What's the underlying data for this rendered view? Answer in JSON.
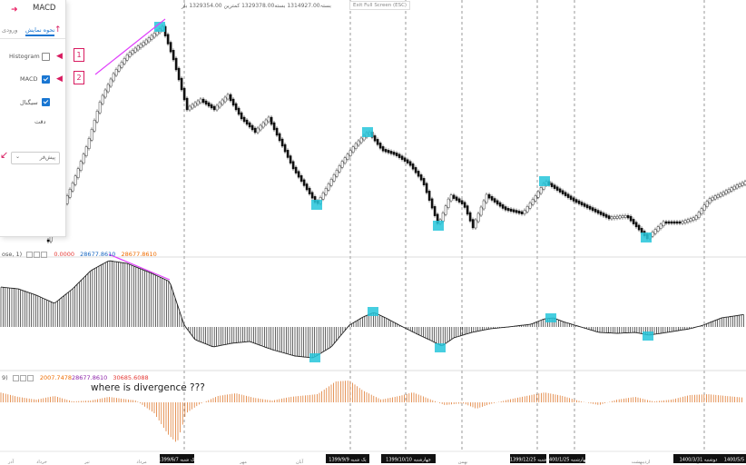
{
  "ohlc_bar": "بستہ1314927.00 بسته1329378.00 کمترین 1329354.00 باز",
  "fullscreen_label": "Exit Full Screen (ESC)",
  "panel": {
    "title": "MACD",
    "tabs": [
      "نحوه نمایش",
      "ورودی"
    ],
    "rows": [
      {
        "label": "Histogram",
        "checked": false,
        "badge": "1"
      },
      {
        "label": "MACD",
        "checked": true,
        "badge": "2"
      },
      {
        "label": "سیگنال",
        "checked": true,
        "badge": ""
      }
    ],
    "precision_label": "دقت",
    "select_value": "پیش‌فر"
  },
  "macd_label": {
    "name": "ose, 1)",
    "values": [
      "0.0000",
      "28677.8610",
      "28677.8610"
    ]
  },
  "signal_label": {
    "name": "9)",
    "values": [
      "2007.7478",
      "28677.8610",
      "30685.6088"
    ]
  },
  "annotation": "where is divergence ???",
  "x_axis": {
    "small_labels": [
      "آذر",
      "خرداد",
      "تیر",
      "مرداد",
      "مهر",
      "آبان",
      "بهمن",
      "اردیبهشت",
      "خرداد"
    ],
    "date_badges": [
      {
        "text": "1399/6/7 یک شنبه"
      },
      {
        "text": "1399/9/9 یک شنبه"
      },
      {
        "text": "1399/10/10 چهارشنبه"
      },
      {
        "text": "1399/12/25 شنبه"
      },
      {
        "text": "1400/1/25 چهارشنبه"
      },
      {
        "text": "1400/3/31 دوشنبه"
      },
      {
        "text": "1400/5/5"
      }
    ]
  },
  "colors": {
    "marker": "#26c6da",
    "divergence_line": "#e040fb",
    "macd_hist": "#222222",
    "signal_hist": "#e07b32",
    "badge_bg": "#111111"
  }
}
